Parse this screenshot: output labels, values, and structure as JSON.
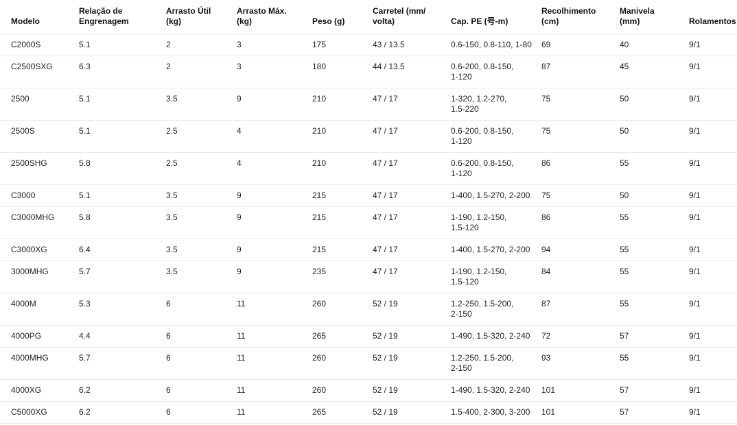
{
  "colors": {
    "background": "#ffffff",
    "text": "#1f1f1f",
    "header_text": "#111111",
    "separator": "#e8e8e8"
  },
  "table": {
    "columns": [
      {
        "key": "modelo",
        "label": "Modelo"
      },
      {
        "key": "relacao-engrenagem",
        "label": "Relação de\nEngrenagem"
      },
      {
        "key": "arrasto-util",
        "label": "Arrasto Útil\n(kg)"
      },
      {
        "key": "arrasto-max",
        "label": "Arrasto Máx.\n(kg)"
      },
      {
        "key": "peso",
        "label": "Peso (g)"
      },
      {
        "key": "carretel",
        "label": "Carretel (mm/\nvolta)"
      },
      {
        "key": "cap-pe",
        "label": "Cap. PE (号-m)"
      },
      {
        "key": "recolhimento",
        "label": "Recolhimento\n(cm)"
      },
      {
        "key": "manivela",
        "label": "Manivela\n(mm)"
      },
      {
        "key": "rolamentos",
        "label": "Rolamentos"
      }
    ],
    "rows": [
      [
        "C2000S",
        "5.1",
        "2",
        "3",
        "175",
        "43 / 13.5",
        "0.6-150, 0.8-110, 1-80",
        "69",
        "40",
        "9/1"
      ],
      [
        "C2500SXG",
        "6.3",
        "2",
        "3",
        "180",
        "44 / 13.5",
        "0.6-200, 0.8-150,\n1-120",
        "87",
        "45",
        "9/1"
      ],
      [
        "2500",
        "5.1",
        "3.5",
        "9",
        "210",
        "47 / 17",
        "1-320, 1.2-270,\n1.5-220",
        "75",
        "50",
        "9/1"
      ],
      [
        "2500S",
        "5.1",
        "2.5",
        "4",
        "210",
        "47 / 17",
        "0.6-200, 0.8-150,\n1-120",
        "75",
        "50",
        "9/1"
      ],
      [
        "2500SHG",
        "5.8",
        "2.5",
        "4",
        "210",
        "47 / 17",
        "0.6-200, 0.8-150,\n1-120",
        "86",
        "55",
        "9/1"
      ],
      [
        "C3000",
        "5.1",
        "3.5",
        "9",
        "215",
        "47 / 17",
        "1-400, 1.5-270, 2-200",
        "75",
        "50",
        "9/1"
      ],
      [
        "C3000MHG",
        "5.8",
        "3.5",
        "9",
        "215",
        "47 / 17",
        "1-190, 1.2-150,\n1.5-120",
        "86",
        "55",
        "9/1"
      ],
      [
        "C3000XG",
        "6.4",
        "3.5",
        "9",
        "215",
        "47 / 17",
        "1-400, 1.5-270, 2-200",
        "94",
        "55",
        "9/1"
      ],
      [
        "3000MHG",
        "5.7",
        "3.5",
        "9",
        "235",
        "47 / 17",
        "1-190, 1.2-150,\n1.5-120",
        "84",
        "55",
        "9/1"
      ],
      [
        "4000M",
        "5.3",
        "6",
        "11",
        "260",
        "52 / 19",
        "1.2-250, 1.5-200,\n2-150",
        "87",
        "55",
        "9/1"
      ],
      [
        "4000PG",
        "4.4",
        "6",
        "11",
        "265",
        "52 / 19",
        "1-490, 1.5-320, 2-240",
        "72",
        "57",
        "9/1"
      ],
      [
        "4000MHG",
        "5.7",
        "6",
        "11",
        "260",
        "52 / 19",
        "1.2-250, 1.5-200,\n2-150",
        "93",
        "55",
        "9/1"
      ],
      [
        "4000XG",
        "6.2",
        "6",
        "11",
        "260",
        "52 / 19",
        "1-490, 1.5-320, 2-240",
        "101",
        "57",
        "9/1"
      ],
      [
        "C5000XG",
        "6.2",
        "6",
        "11",
        "265",
        "52 / 19",
        "1.5-400, 2-300, 3-200",
        "101",
        "57",
        "9/1"
      ]
    ]
  }
}
